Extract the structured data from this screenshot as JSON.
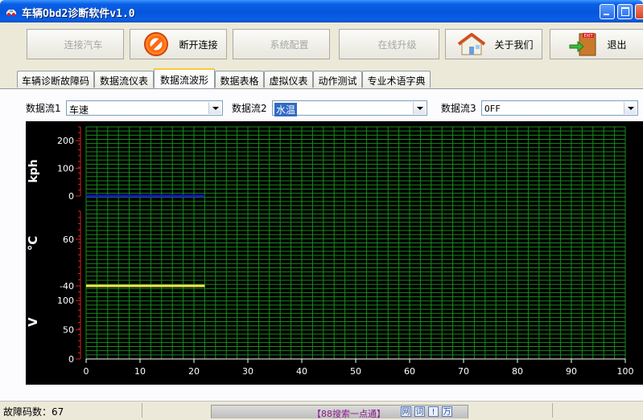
{
  "window": {
    "title": "车辆Obd2诊断软件v1.0"
  },
  "toolbar": {
    "connect": "连接汽车",
    "disconnect": "断开连接",
    "config": "系统配置",
    "upgrade": "在线升级",
    "about": "关于我们",
    "exit": "退出"
  },
  "tabs": [
    "车辆诊断故障码",
    "数据流仪表",
    "数据流波形",
    "数据表格",
    "虚拟仪表",
    "动作测试",
    "专业术语字典"
  ],
  "active_tab": "数据流波形",
  "streams": [
    {
      "label": "数据流1",
      "value": "车速"
    },
    {
      "label": "数据流2",
      "value": "水温"
    },
    {
      "label": "数据流3",
      "value": "OFF"
    }
  ],
  "chart_data": {
    "type": "line",
    "x_ticks": [
      "0",
      "10",
      "20",
      "30",
      "40",
      "50",
      "60",
      "70",
      "80",
      "90",
      "100"
    ],
    "xlim": [
      0,
      100
    ],
    "grid": true,
    "panels": [
      {
        "unit": "kph",
        "ticks": [
          "200",
          "100",
          "0"
        ],
        "ylim": [
          0,
          250
        ],
        "series": [
          {
            "color": "#1010d0",
            "x": [
              0,
              22
            ],
            "y": [
              0,
              0
            ]
          }
        ]
      },
      {
        "unit": "°C",
        "ticks": [
          "60",
          "-40"
        ],
        "ylim": [
          -40,
          120
        ],
        "series": [
          {
            "color": "#f2e64a",
            "x": [
              0,
              22
            ],
            "y": [
              -40,
              -40
            ]
          }
        ]
      },
      {
        "unit": "V",
        "ticks": [
          "100",
          "50",
          "0"
        ],
        "ylim": [
          0,
          125
        ],
        "series": []
      }
    ]
  },
  "statusbar": {
    "fault_count": "故障码数：67",
    "ime_text": "【88搜索一点通】",
    "ime_buttons": [
      "网",
      "词",
      "!",
      "万"
    ]
  }
}
